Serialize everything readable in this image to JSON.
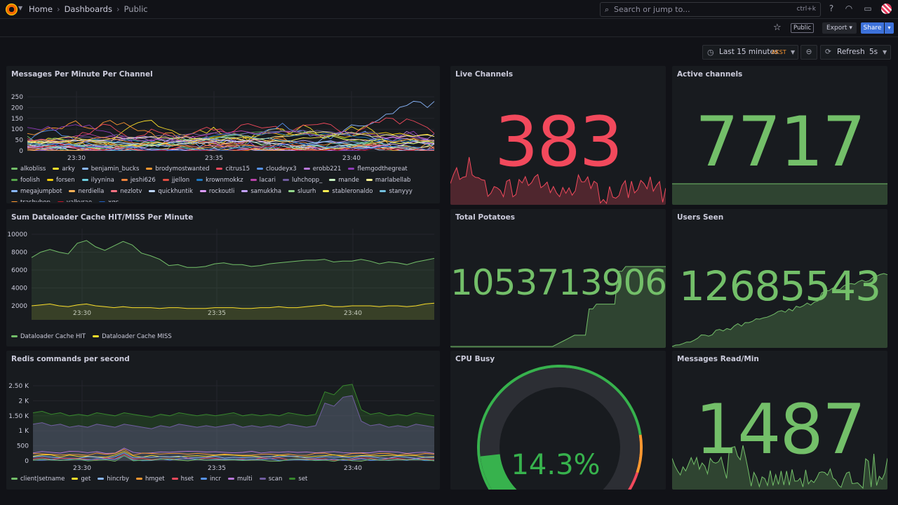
{
  "topbar": {
    "breadcrumb": [
      "Home",
      "Dashboards",
      "Public"
    ],
    "search_placeholder": "Search or jump to...",
    "search_shortcut": "ctrl+k"
  },
  "actions": {
    "public_badge": "Public",
    "export_label": "Export",
    "share_label": "Share"
  },
  "timepicker": {
    "range_label": "Last 15 minutes",
    "timezone": "AKST",
    "refresh_label": "Refresh",
    "refresh_interval": "5s"
  },
  "colors": {
    "green": "#73bf69",
    "red": "#f2495c",
    "yellow": "#fade2a",
    "blue": "#5794f2",
    "orange": "#ff9830",
    "purple": "#b877d9"
  },
  "panels": {
    "messages": {
      "title": "Messages Per Minute Per Channel",
      "legend": [
        {
          "name": "alkobliss",
          "color": "#73bf69"
        },
        {
          "name": "arky",
          "color": "#fade2a"
        },
        {
          "name": "benjamin_bucks",
          "color": "#8ab8ff"
        },
        {
          "name": "brodymostwanted",
          "color": "#ff9830"
        },
        {
          "name": "citrus15",
          "color": "#f2495c"
        },
        {
          "name": "cloudeyx3",
          "color": "#5794f2"
        },
        {
          "name": "erobb221",
          "color": "#b877d9"
        },
        {
          "name": "flemgodthegreat",
          "color": "#8f3bb8"
        },
        {
          "name": "foolish",
          "color": "#56a64b"
        },
        {
          "name": "forsen",
          "color": "#f2cc0c"
        },
        {
          "name": "ilyynina",
          "color": "#6ed0e0"
        },
        {
          "name": "jeshi626",
          "color": "#ef843c"
        },
        {
          "name": "jjellon",
          "color": "#e24d42"
        },
        {
          "name": "krownmokkz",
          "color": "#1f78c1"
        },
        {
          "name": "lacari",
          "color": "#ba43a9"
        },
        {
          "name": "luhchopp_",
          "color": "#705da0"
        },
        {
          "name": "mande",
          "color": "#c8f2c2"
        },
        {
          "name": "marlabellab",
          "color": "#fff899"
        },
        {
          "name": "megajumpbot",
          "color": "#8ab8ff"
        },
        {
          "name": "nerdiella",
          "color": "#ffb357"
        },
        {
          "name": "nezlotv",
          "color": "#ff7383"
        },
        {
          "name": "quickhuntik",
          "color": "#c0d8ff"
        },
        {
          "name": "rockoutli",
          "color": "#de9cff"
        },
        {
          "name": "samukkha",
          "color": "#c4a2ff"
        },
        {
          "name": "sluurh",
          "color": "#96d98d"
        },
        {
          "name": "stableronaldo",
          "color": "#ffee52"
        },
        {
          "name": "stanyyy",
          "color": "#73c1e0"
        },
        {
          "name": "trashybop",
          "color": "#ff9830"
        },
        {
          "name": "valkyrae",
          "color": "#c4162a"
        },
        {
          "name": "xqc",
          "color": "#1f60c4"
        }
      ],
      "y_ticks": [
        "250",
        "200",
        "150",
        "100",
        "50",
        "0"
      ],
      "x_ticks": [
        "23:30",
        "23:35",
        "23:40"
      ]
    },
    "live_channels": {
      "title": "Live Channels",
      "value": "383"
    },
    "active_channels": {
      "title": "Active channels",
      "value": "7717"
    },
    "dataloader": {
      "title": "Sum Dataloader Cache HIT/MISS Per Minute",
      "legend": [
        {
          "name": "Dataloader Cache HIT",
          "color": "#73bf69"
        },
        {
          "name": "Dataloader Cache MISS",
          "color": "#fade2a"
        }
      ],
      "y_ticks": [
        "10000",
        "8000",
        "6000",
        "4000",
        "2000"
      ],
      "x_ticks": [
        "23:30",
        "23:35",
        "23:40"
      ]
    },
    "total_potatoes": {
      "title": "Total Potatoes",
      "value": "1053713906"
    },
    "users_seen": {
      "title": "Users Seen",
      "value": "12685543"
    },
    "redis": {
      "title": "Redis commands per second",
      "legend": [
        {
          "name": "client|setname",
          "color": "#73bf69"
        },
        {
          "name": "get",
          "color": "#fade2a"
        },
        {
          "name": "hincrby",
          "color": "#8ab8ff"
        },
        {
          "name": "hmget",
          "color": "#ff9830"
        },
        {
          "name": "hset",
          "color": "#f2495c"
        },
        {
          "name": "incr",
          "color": "#5794f2"
        },
        {
          "name": "multi",
          "color": "#b877d9"
        },
        {
          "name": "scan",
          "color": "#705da0"
        },
        {
          "name": "set",
          "color": "#37872d"
        }
      ],
      "y_ticks": [
        "2.50 K",
        "2 K",
        "1.50 K",
        "1 K",
        "500",
        "0"
      ],
      "x_ticks": [
        "23:30",
        "23:35",
        "23:40"
      ]
    },
    "cpu_busy": {
      "title": "CPU Busy",
      "value": "14.3%",
      "percent": 14.3
    },
    "messages_read": {
      "title": "Messages Read/Min",
      "value": "1487"
    }
  }
}
